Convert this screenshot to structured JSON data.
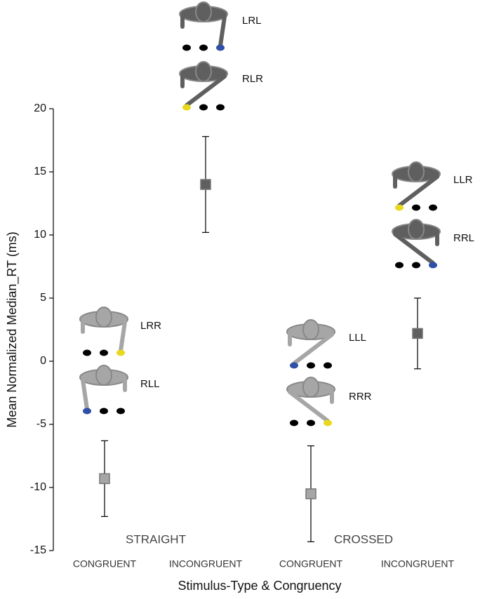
{
  "chart_data": {
    "type": "errorbar",
    "y_label": "Mean Normalized Median_RT (ms)",
    "x_label": "Stimulus-Type & Congruency",
    "categories": [
      "CONGRUENT",
      "INCONGRUENT",
      "CONGRUENT",
      "INCONGRUENT"
    ],
    "group_labels": [
      "STRAIGHT",
      "CROSSED"
    ],
    "values": [
      -9.3,
      14,
      -10.5,
      2.2
    ],
    "errors": [
      3.0,
      3.8,
      3.8,
      2.8
    ],
    "colors": [
      "#a6a6a6",
      "#5f5f5f",
      "#a6a6a6",
      "#5f5f5f"
    ],
    "ylim": [
      -15,
      20
    ],
    "yticks": [
      -15,
      -10,
      -5,
      0,
      5,
      10,
      15,
      20
    ],
    "annotations": [
      "LRL",
      "RLR",
      "LRR",
      "RLL",
      "LLL",
      "RRR",
      "LLR",
      "RRL"
    ]
  }
}
